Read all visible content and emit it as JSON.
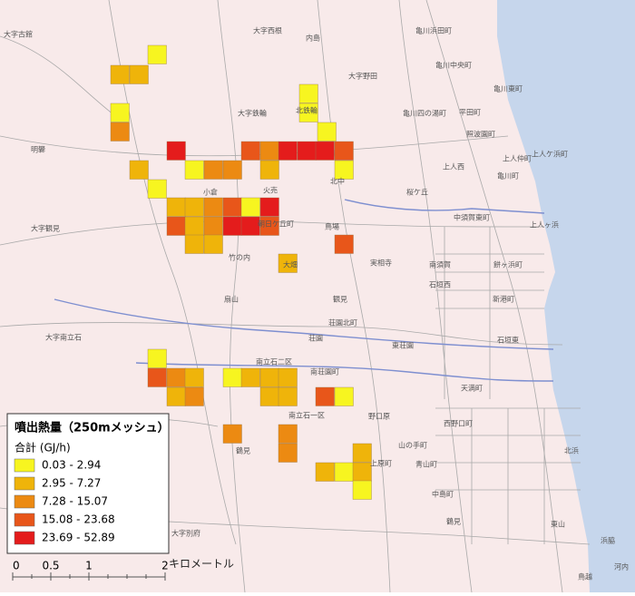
{
  "legend": {
    "title": "噴出熱量（250mメッシュ）",
    "subtitle": "合計 (GJ/h)",
    "classes": [
      {
        "label": "0.03 - 2.94",
        "color": "#f7f520"
      },
      {
        "label": "2.95 - 7.27",
        "color": "#efb40a"
      },
      {
        "label": "7.28 - 15.07",
        "color": "#ec8a12"
      },
      {
        "label": "15.08 - 23.68",
        "color": "#e8561a"
      },
      {
        "label": "23.69 - 52.89",
        "color": "#e41c1c"
      }
    ]
  },
  "scale": {
    "ticks": [
      "0",
      "0.5",
      "1",
      "2"
    ],
    "unit": "キロメートル"
  },
  "places": [
    "大字古館",
    "大字西根",
    "内島",
    "亀川浜田町",
    "亀川中央町",
    "大字野田",
    "亀川東町",
    "亀川四の湯町",
    "平田町",
    "大字鉄輪",
    "北鉄輪",
    "照波園町",
    "上人仲町",
    "上人ケ浜町",
    "明礬",
    "上人西",
    "火売",
    "北中",
    "桜ケ丘",
    "小倉",
    "朝日ケ丘町",
    "鳥場",
    "中須賀東町",
    "大字観見",
    "竹の内",
    "大畑",
    "実相寺",
    "南須賀",
    "石垣西",
    "石垣東",
    "扇山",
    "観見",
    "荘園北町",
    "荘園",
    "東荘園",
    "大字南立石",
    "南立石二区",
    "南荘園町",
    "天満町",
    "南立石一区",
    "鶴見",
    "野口原",
    "西野口町",
    "山の手町",
    "北浜",
    "青山町",
    "上原町",
    "中島町",
    "鶴見",
    "大字別府",
    "浜脇",
    "鳥越",
    "河内",
    "東山",
    "餅ヶ浜町",
    "上人ヶ浜",
    "新港町",
    "亀川町"
  ]
}
